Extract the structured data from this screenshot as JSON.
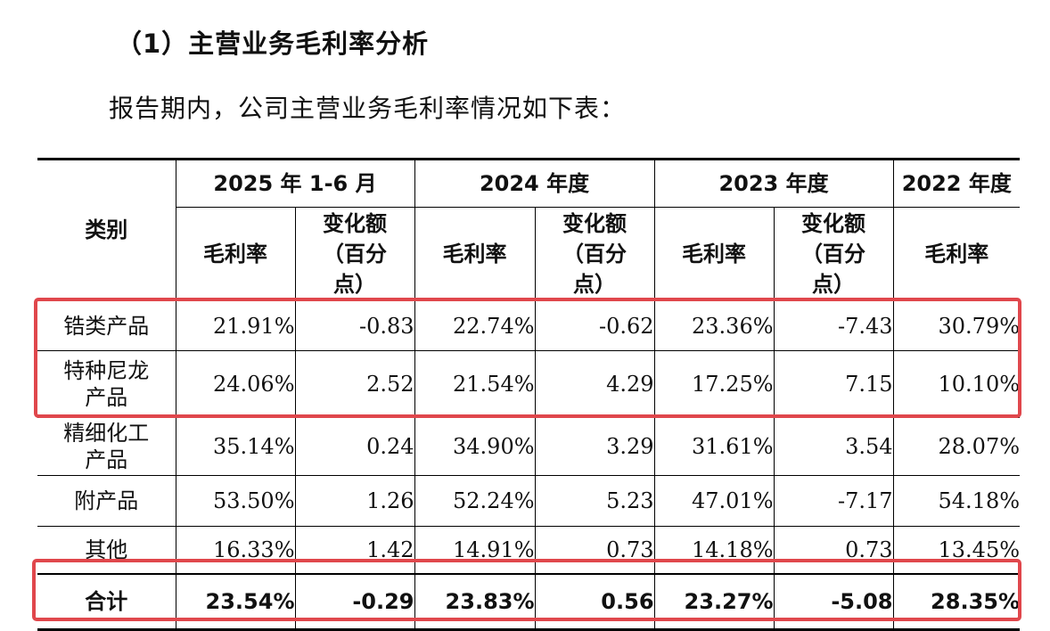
{
  "heading": "（1）主营业务毛利率分析",
  "intro": "报告期内，公司主营业务毛利率情况如下表：",
  "table": {
    "category_header": "类别",
    "periods": [
      "2025 年 1-6 月",
      "2024 年度",
      "2023 年度",
      "2022 年度"
    ],
    "sub_headers": {
      "margin": "毛利率",
      "change_line1": "变化额",
      "change_line2": "（百分",
      "change_line3": "点）"
    },
    "rows": [
      {
        "name_line1": "锆类产品",
        "name_line2": "",
        "v": [
          "21.91%",
          "-0.83",
          "22.74%",
          "-0.62",
          "23.36%",
          "-7.43",
          "30.79%"
        ]
      },
      {
        "name_line1": "特种尼龙",
        "name_line2": "产品",
        "v": [
          "24.06%",
          "2.52",
          "21.54%",
          "4.29",
          "17.25%",
          "7.15",
          "10.10%"
        ]
      },
      {
        "name_line1": "精细化工",
        "name_line2": "产品",
        "v": [
          "35.14%",
          "0.24",
          "34.90%",
          "3.29",
          "31.61%",
          "3.54",
          "28.07%"
        ]
      },
      {
        "name_line1": "附产品",
        "name_line2": "",
        "v": [
          "53.50%",
          "1.26",
          "52.24%",
          "5.23",
          "47.01%",
          "-7.17",
          "54.18%"
        ]
      },
      {
        "name_line1": "其他",
        "name_line2": "",
        "v": [
          "16.33%",
          "1.42",
          "14.91%",
          "0.73",
          "14.18%",
          "0.73",
          "13.45%"
        ]
      }
    ],
    "total": {
      "name": "合计",
      "v": [
        "23.54%",
        "-0.29",
        "23.83%",
        "0.56",
        "23.27%",
        "-5.08",
        "28.35%"
      ]
    }
  },
  "highlight_color": "#e0474c"
}
